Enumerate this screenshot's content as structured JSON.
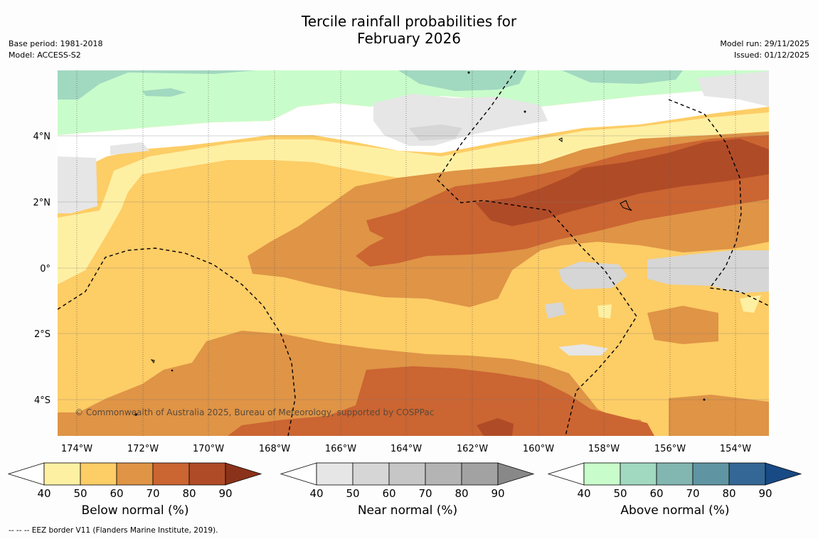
{
  "title": {
    "line1": "Tercile rainfall probabilities for",
    "line2": "February 2026"
  },
  "header_left": {
    "base_period": "Base period: 1981-2018",
    "model": "Model: ACCESS-S2"
  },
  "header_right": {
    "model_run": "Model run: 29/11/2025",
    "issued": "Issued: 01/12/2025"
  },
  "map": {
    "lon_labels": [
      "174°W",
      "172°W",
      "170°W",
      "168°W",
      "166°W",
      "164°W",
      "162°W",
      "160°W",
      "158°W",
      "156°W",
      "154°W"
    ],
    "lat_labels": [
      "4°N",
      "2°N",
      "0°",
      "2°S",
      "4°S"
    ],
    "copyright": "© Commonwealth of Australia 2025, Bureau of Meteorology, supported by COSPPac"
  },
  "colorbars": [
    {
      "label": "Below normal (%)",
      "ticks": [
        "40",
        "50",
        "60",
        "70",
        "80",
        "90"
      ],
      "colors": [
        "#fef0a3",
        "#fdcd66",
        "#df9446",
        "#cb6532",
        "#b04b27",
        "#8b331a"
      ]
    },
    {
      "label": "Near normal (%)",
      "ticks": [
        "40",
        "50",
        "60",
        "70",
        "80",
        "90"
      ],
      "colors": [
        "#e6e6e6",
        "#d6d6d6",
        "#c6c6c6",
        "#b4b4b4",
        "#a2a2a2",
        "#888888"
      ]
    },
    {
      "label": "Above normal (%)",
      "ticks": [
        "40",
        "50",
        "60",
        "70",
        "80",
        "90"
      ],
      "colors": [
        "#c9fccb",
        "#a1d8c0",
        "#82b6b0",
        "#5f95a2",
        "#346795",
        "#184a85"
      ]
    }
  ],
  "footnote": "--  --  -- EEZ border V11 (Flanders Marine Institute, 2019)."
}
